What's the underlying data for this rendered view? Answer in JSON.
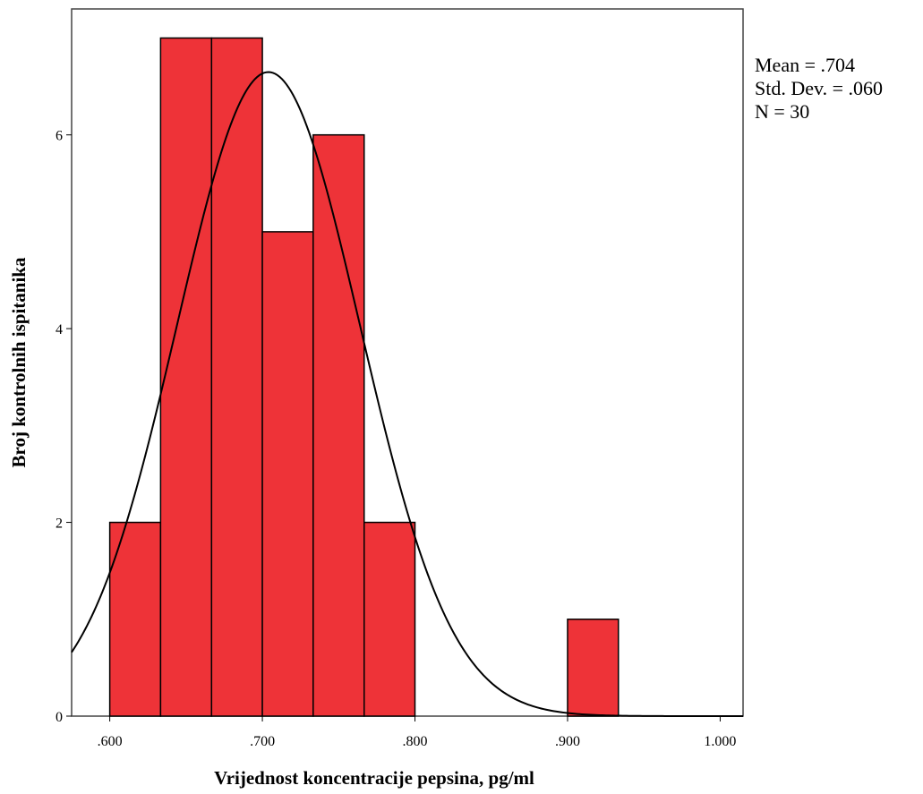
{
  "chart_data": {
    "type": "bar",
    "title": "",
    "xlabel": "Vrijednost koncentracije pepsina, pg/ml",
    "ylabel": "Broj kontrolnih ispitanika",
    "xlim": [
      0.575,
      1.015
    ],
    "ylim": [
      0,
      7.3
    ],
    "bar_color": "#ee3338",
    "curve_color": "#000000",
    "bins": [
      {
        "x0": 0.6,
        "x1": 0.6333,
        "count": 2
      },
      {
        "x0": 0.6333,
        "x1": 0.6667,
        "count": 7
      },
      {
        "x0": 0.6667,
        "x1": 0.7,
        "count": 7
      },
      {
        "x0": 0.7,
        "x1": 0.7333,
        "count": 5
      },
      {
        "x0": 0.7333,
        "x1": 0.7667,
        "count": 6
      },
      {
        "x0": 0.7667,
        "x1": 0.8,
        "count": 2
      },
      {
        "x0": 0.9,
        "x1": 0.9333,
        "count": 1
      }
    ],
    "x_ticks": [
      {
        "value": 0.6,
        "label": ".600"
      },
      {
        "value": 0.7,
        "label": ".700"
      },
      {
        "value": 0.8,
        "label": ".800"
      },
      {
        "value": 0.9,
        "label": ".900"
      },
      {
        "value": 1.0,
        "label": "1.000"
      }
    ],
    "y_ticks": [
      {
        "value": 0,
        "label": "0"
      },
      {
        "value": 2,
        "label": "2"
      },
      {
        "value": 4,
        "label": "4"
      },
      {
        "value": 6,
        "label": "6"
      }
    ],
    "normal_curve": {
      "mean": 0.704,
      "sd": 0.06,
      "n": 30,
      "bin_width": 0.03333
    },
    "stats": {
      "mean": "Mean = .704",
      "sd": "Std. Dev. = .060",
      "n": "N = 30"
    },
    "grid": false,
    "legend": "none"
  }
}
